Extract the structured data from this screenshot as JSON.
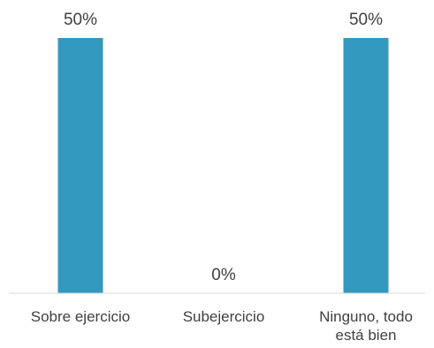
{
  "chart_data": {
    "type": "bar",
    "categories": [
      "Sobre ejercicio",
      "Subejercicio",
      "Ninguno, todo está bien"
    ],
    "category_lines": [
      [
        "Sobre ejercicio"
      ],
      [
        "Subejercicio"
      ],
      [
        "Ninguno, todo",
        "está bien"
      ]
    ],
    "values": [
      50,
      0,
      50
    ],
    "data_labels": [
      "50%",
      "0%",
      "50%"
    ],
    "ylim": [
      0,
      50
    ],
    "unit": "%",
    "grid": false,
    "legend": "none",
    "bar_color": "#3399BF",
    "axis_color": "#D9D9D9",
    "text_color": "#404040"
  }
}
